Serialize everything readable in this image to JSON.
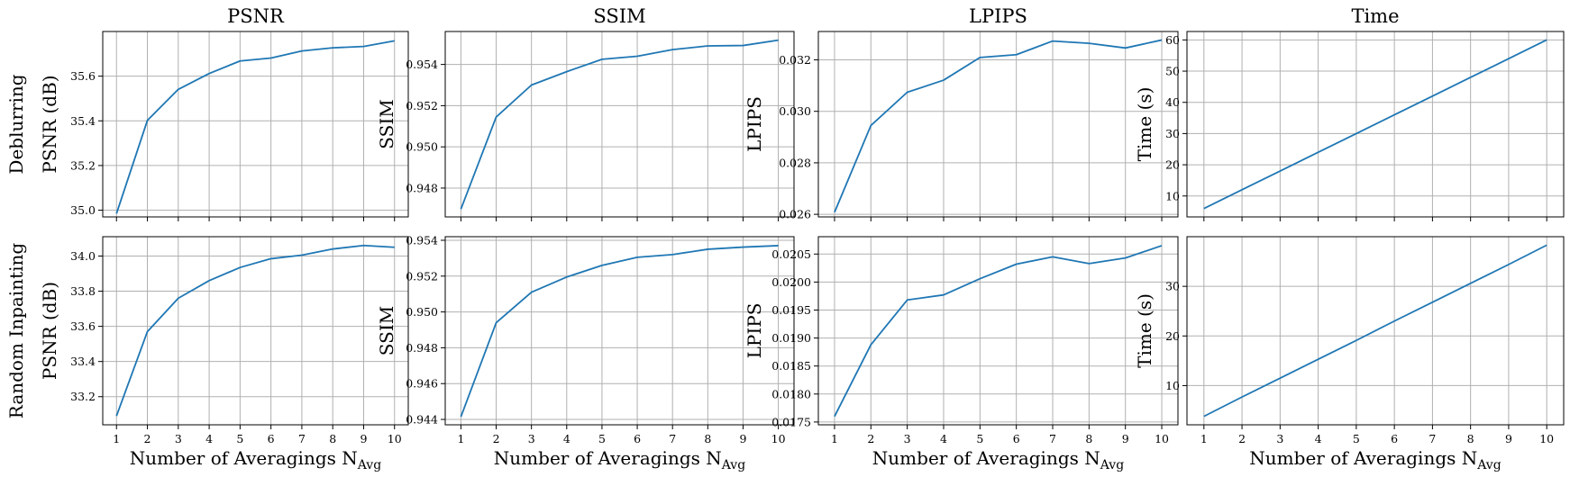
{
  "colors": {
    "series": "#1f77b4",
    "grid": "#b0b0b0"
  },
  "row_labels": [
    "Deblurring",
    "Random Inpainting"
  ],
  "column_titles": [
    "PSNR",
    "SSIM",
    "LPIPS",
    "Time"
  ],
  "chart_data": [
    {
      "type": "line",
      "row": 0,
      "col": 0,
      "title": "PSNR",
      "xlabel": "",
      "ylabel": "PSNR (dB)",
      "x": [
        1,
        2,
        3,
        4,
        5,
        6,
        7,
        8,
        9,
        10
      ],
      "values": [
        34.985,
        35.402,
        35.541,
        35.612,
        35.668,
        35.681,
        35.713,
        35.727,
        35.733,
        35.758
      ],
      "ylim": [
        34.97,
        35.8
      ],
      "yticks": [
        "35.0",
        "35.2",
        "35.4",
        "35.6"
      ],
      "ytick_values": [
        35.0,
        35.2,
        35.4,
        35.6
      ],
      "xticks_labeled": false,
      "grid": true
    },
    {
      "type": "line",
      "row": 0,
      "col": 1,
      "title": "SSIM",
      "xlabel": "",
      "ylabel": "SSIM",
      "x": [
        1,
        2,
        3,
        4,
        5,
        6,
        7,
        8,
        9,
        10
      ],
      "values": [
        0.94698,
        0.95145,
        0.953,
        0.95365,
        0.95425,
        0.9544,
        0.95472,
        0.9549,
        0.95492,
        0.95518
      ],
      "ylim": [
        0.9466,
        0.9556
      ],
      "yticks": [
        "0.948",
        "0.950",
        "0.952",
        "0.954"
      ],
      "ytick_values": [
        0.948,
        0.95,
        0.952,
        0.954
      ],
      "xticks_labeled": false,
      "grid": true
    },
    {
      "type": "line",
      "row": 0,
      "col": 2,
      "title": "LPIPS",
      "xlabel": "",
      "ylabel": "LPIPS",
      "x": [
        1,
        2,
        3,
        4,
        5,
        6,
        7,
        8,
        9,
        10
      ],
      "values": [
        0.02608,
        0.02945,
        0.03074,
        0.03121,
        0.03209,
        0.0322,
        0.03273,
        0.03264,
        0.03246,
        0.03277
      ],
      "ylim": [
        0.0259,
        0.0331
      ],
      "yticks": [
        "0.026",
        "0.028",
        "0.030",
        "0.032"
      ],
      "ytick_values": [
        0.026,
        0.028,
        0.03,
        0.032
      ],
      "xticks_labeled": false,
      "grid": true
    },
    {
      "type": "line",
      "row": 0,
      "col": 3,
      "title": "Time",
      "xlabel": "",
      "ylabel": "Time (s)",
      "x": [
        1,
        2,
        3,
        4,
        5,
        6,
        7,
        8,
        9,
        10
      ],
      "values": [
        6.0,
        12.0,
        18.0,
        24.0,
        30.0,
        36.0,
        42.0,
        48.0,
        54.0,
        60.0
      ],
      "ylim": [
        3.3,
        62.7
      ],
      "yticks": [
        "10",
        "20",
        "30",
        "40",
        "50",
        "60"
      ],
      "ytick_values": [
        10,
        20,
        30,
        40,
        50,
        60
      ],
      "xticks_labeled": false,
      "grid": true
    },
    {
      "type": "line",
      "row": 1,
      "col": 0,
      "title": "",
      "xlabel": "Number of Averagings N",
      "xlabel_sub": "Avg",
      "ylabel": "PSNR (dB)",
      "x": [
        1,
        2,
        3,
        4,
        5,
        6,
        7,
        8,
        9,
        10
      ],
      "values": [
        33.09,
        33.57,
        33.76,
        33.86,
        33.935,
        33.985,
        34.005,
        34.04,
        34.06,
        34.05
      ],
      "ylim": [
        33.04,
        34.11
      ],
      "yticks": [
        "33.2",
        "33.4",
        "33.6",
        "33.8",
        "34.0"
      ],
      "ytick_values": [
        33.2,
        33.4,
        33.6,
        33.8,
        34.0
      ],
      "xticks": [
        "1",
        "2",
        "3",
        "4",
        "5",
        "6",
        "7",
        "8",
        "9",
        "10"
      ],
      "xticks_labeled": true,
      "grid": true
    },
    {
      "type": "line",
      "row": 1,
      "col": 1,
      "title": "",
      "xlabel": "Number of Averagings N",
      "xlabel_sub": "Avg",
      "ylabel": "SSIM",
      "x": [
        1,
        2,
        3,
        4,
        5,
        6,
        7,
        8,
        9,
        10
      ],
      "values": [
        0.94415,
        0.9494,
        0.9511,
        0.95195,
        0.9526,
        0.95305,
        0.9532,
        0.9535,
        0.95362,
        0.9537
      ],
      "ylim": [
        0.9437,
        0.9542
      ],
      "yticks": [
        "0.944",
        "0.946",
        "0.948",
        "0.950",
        "0.952",
        "0.954"
      ],
      "ytick_values": [
        0.944,
        0.946,
        0.948,
        0.95,
        0.952,
        0.954
      ],
      "xticks": [
        "1",
        "2",
        "3",
        "4",
        "5",
        "6",
        "7",
        "8",
        "9",
        "10"
      ],
      "xticks_labeled": true,
      "grid": true
    },
    {
      "type": "line",
      "row": 1,
      "col": 2,
      "title": "",
      "xlabel": "Number of Averagings N",
      "xlabel_sub": "Avg",
      "ylabel": "LPIPS",
      "x": [
        1,
        2,
        3,
        4,
        5,
        6,
        7,
        8,
        9,
        10
      ],
      "values": [
        0.0176,
        0.01888,
        0.01968,
        0.01977,
        0.02006,
        0.02032,
        0.02045,
        0.02033,
        0.02043,
        0.02065
      ],
      "ylim": [
        0.01745,
        0.02081
      ],
      "yticks": [
        "0.0175",
        "0.0180",
        "0.0185",
        "0.0190",
        "0.0195",
        "0.0200",
        "0.0205"
      ],
      "ytick_values": [
        0.0175,
        0.018,
        0.0185,
        0.019,
        0.0195,
        0.02,
        0.0205
      ],
      "xticks": [
        "1",
        "2",
        "3",
        "4",
        "5",
        "6",
        "7",
        "8",
        "9",
        "10"
      ],
      "xticks_labeled": true,
      "grid": true
    },
    {
      "type": "line",
      "row": 1,
      "col": 3,
      "title": "",
      "xlabel": "Number of Averagings N",
      "xlabel_sub": "Avg",
      "ylabel": "Time (s)",
      "x": [
        1,
        2,
        3,
        4,
        5,
        6,
        7,
        8,
        9,
        10
      ],
      "values": [
        3.8,
        7.7,
        11.5,
        15.3,
        19.1,
        23.0,
        26.8,
        30.6,
        34.4,
        38.3
      ],
      "ylim": [
        2.1,
        40.0
      ],
      "yticks": [
        "10",
        "20",
        "30"
      ],
      "ytick_values": [
        10,
        20,
        30
      ],
      "xticks": [
        "1",
        "2",
        "3",
        "4",
        "5",
        "6",
        "7",
        "8",
        "9",
        "10"
      ],
      "xticks_labeled": true,
      "grid": true
    }
  ]
}
